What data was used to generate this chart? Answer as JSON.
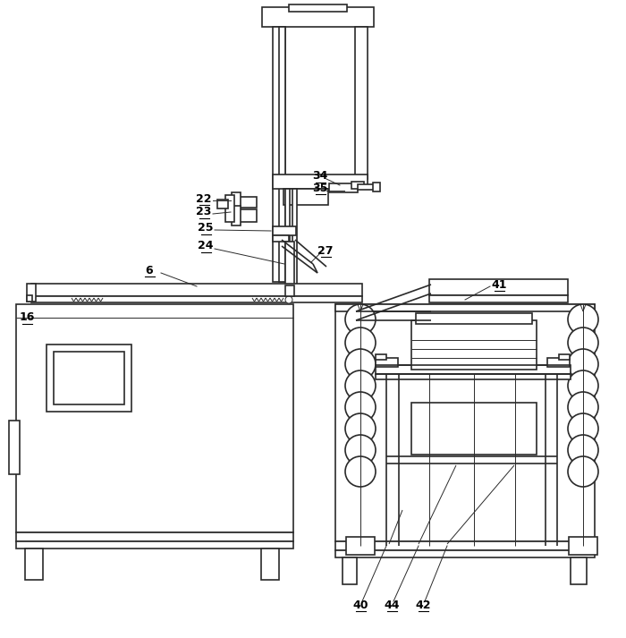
{
  "bg_color": "#ffffff",
  "line_color": "#2a2a2a",
  "lw": 1.2,
  "tlw": 0.7,
  "fs": 9
}
